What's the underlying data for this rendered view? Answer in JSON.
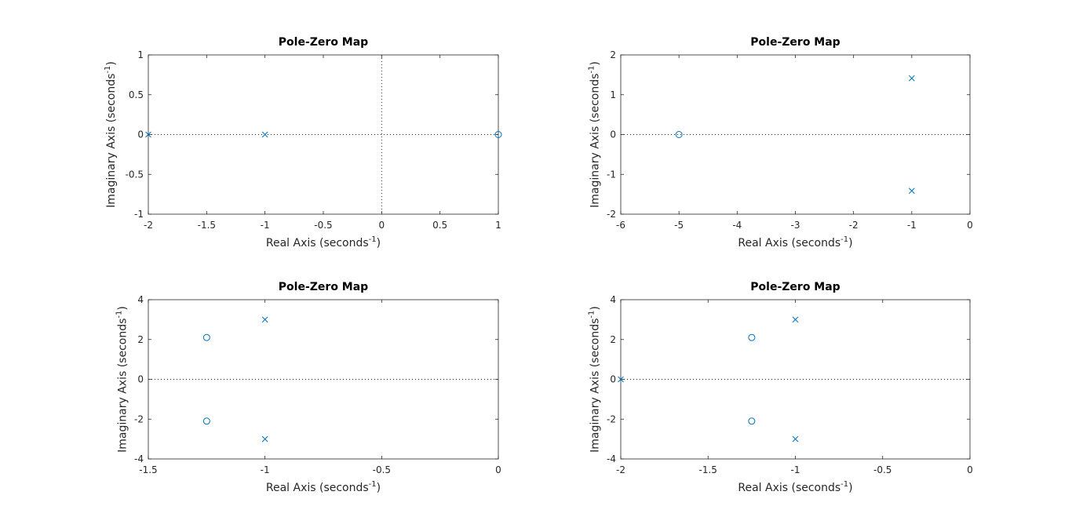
{
  "chart_data": [
    {
      "type": "scatter",
      "title": "Pole-Zero Map",
      "xlabel": "Real Axis (seconds",
      "xlabel_sup": "-1",
      "xlabel_end": ")",
      "ylabel": "Imaginary Axis (seconds",
      "ylabel_sup": "-1",
      "ylabel_end": ")",
      "xlim": [
        -2,
        1
      ],
      "ylim": [
        -1,
        1
      ],
      "xticks": [
        -2,
        -1.5,
        -1,
        -0.5,
        0,
        0.5,
        1
      ],
      "xtick_labels": [
        "-2",
        "-1.5",
        "-1",
        "-0.5",
        "0",
        "0.5",
        "1"
      ],
      "yticks": [
        -1,
        -0.5,
        0,
        0.5,
        1
      ],
      "ytick_labels": [
        "-1",
        "-0.5",
        "0",
        "0.5",
        "1"
      ],
      "show_vertical_zero_line": true,
      "poles": [
        [
          -2,
          0
        ],
        [
          -1,
          0
        ]
      ],
      "zeros": [
        [
          1,
          0
        ]
      ]
    },
    {
      "type": "scatter",
      "title": "Pole-Zero Map",
      "xlabel": "Real Axis (seconds",
      "xlabel_sup": "-1",
      "xlabel_end": ")",
      "ylabel": "Imaginary Axis (seconds",
      "ylabel_sup": "-1",
      "ylabel_end": ")",
      "xlim": [
        -6,
        0
      ],
      "ylim": [
        -2,
        2
      ],
      "xticks": [
        -6,
        -5,
        -4,
        -3,
        -2,
        -1,
        0
      ],
      "xtick_labels": [
        "-6",
        "-5",
        "-4",
        "-3",
        "-2",
        "-1",
        "0"
      ],
      "yticks": [
        -2,
        -1,
        0,
        1,
        2
      ],
      "ytick_labels": [
        "-2",
        "-1",
        "0",
        "1",
        "2"
      ],
      "show_vertical_zero_line": false,
      "poles": [
        [
          -1,
          1.414
        ],
        [
          -1,
          -1.414
        ]
      ],
      "zeros": [
        [
          -5,
          0
        ]
      ]
    },
    {
      "type": "scatter",
      "title": "Pole-Zero Map",
      "xlabel": "Real Axis (seconds",
      "xlabel_sup": "-1",
      "xlabel_end": ")",
      "ylabel": "Imaginary Axis (seconds",
      "ylabel_sup": "-1",
      "ylabel_end": ")",
      "xlim": [
        -1.5,
        0
      ],
      "ylim": [
        -4,
        4
      ],
      "xticks": [
        -1.5,
        -1,
        -0.5,
        0
      ],
      "xtick_labels": [
        "-1.5",
        "-1",
        "-0.5",
        "0"
      ],
      "yticks": [
        -4,
        -2,
        0,
        2,
        4
      ],
      "ytick_labels": [
        "-4",
        "-2",
        "0",
        "2",
        "4"
      ],
      "show_vertical_zero_line": false,
      "poles": [
        [
          -1,
          3
        ],
        [
          -1,
          -3
        ]
      ],
      "zeros": [
        [
          -1.25,
          2.1
        ],
        [
          -1.25,
          -2.1
        ]
      ]
    },
    {
      "type": "scatter",
      "title": "Pole-Zero Map",
      "xlabel": "Real Axis (seconds",
      "xlabel_sup": "-1",
      "xlabel_end": ")",
      "ylabel": "Imaginary Axis (seconds",
      "ylabel_sup": "-1",
      "ylabel_end": ")",
      "xlim": [
        -2,
        0
      ],
      "ylim": [
        -4,
        4
      ],
      "xticks": [
        -2,
        -1.5,
        -1,
        -0.5,
        0
      ],
      "xtick_labels": [
        "-2",
        "-1.5",
        "-1",
        "-0.5",
        "0"
      ],
      "yticks": [
        -4,
        -2,
        0,
        2,
        4
      ],
      "ytick_labels": [
        "-4",
        "-2",
        "0",
        "2",
        "4"
      ],
      "show_vertical_zero_line": false,
      "poles": [
        [
          -1,
          3
        ],
        [
          -1,
          -3
        ],
        [
          -2,
          0
        ]
      ],
      "zeros": [
        [
          -1.25,
          2.1
        ],
        [
          -1.25,
          -2.1
        ]
      ]
    }
  ],
  "colors": {
    "marker": "#0072bd",
    "axes": "#262626",
    "background": "#ffffff"
  }
}
